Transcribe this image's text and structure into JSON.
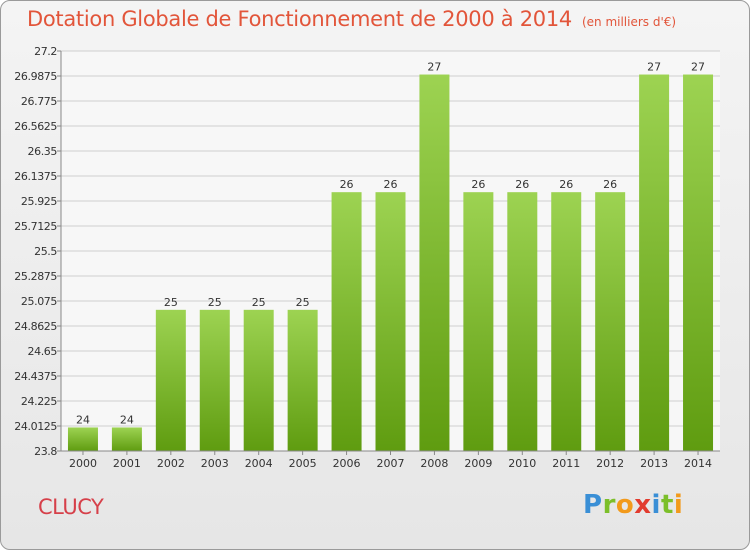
{
  "header": {
    "title": "Dotation Globale de Fonctionnement de 2000 à 2014",
    "subtitle": "(en milliers d'€)"
  },
  "commune": "CLUCY",
  "logo": {
    "text": "Proxiti",
    "parts": [
      "P",
      "r",
      "o",
      "x",
      "i",
      "t",
      "i"
    ]
  },
  "colors": {
    "bar_top": "#9dd352",
    "bar_bottom": "#5f9c10",
    "title": "#e2553a",
    "commune": "#d6404a"
  },
  "chart_data": {
    "type": "bar",
    "categories": [
      "2000",
      "2001",
      "2002",
      "2003",
      "2004",
      "2005",
      "2006",
      "2007",
      "2008",
      "2009",
      "2010",
      "2011",
      "2012",
      "2013",
      "2014"
    ],
    "values": [
      24,
      24,
      25,
      25,
      25,
      25,
      26,
      26,
      27,
      26,
      26,
      26,
      26,
      27,
      27
    ],
    "value_labels": [
      "24",
      "24",
      "25",
      "25",
      "25",
      "25",
      "26",
      "26",
      "27",
      "26",
      "26",
      "26",
      "26",
      "27",
      "27"
    ],
    "ylim": [
      23.8,
      27.2
    ],
    "yticks": [
      "23.8",
      "24.0125",
      "24.225",
      "24.4375",
      "24.65",
      "24.8625",
      "25.075",
      "25.2875",
      "25.5",
      "25.7125",
      "25.925",
      "26.1375",
      "26.35",
      "26.5625",
      "26.775",
      "26.9875",
      "27.2"
    ],
    "grid": true,
    "xlabel": "",
    "ylabel": ""
  }
}
